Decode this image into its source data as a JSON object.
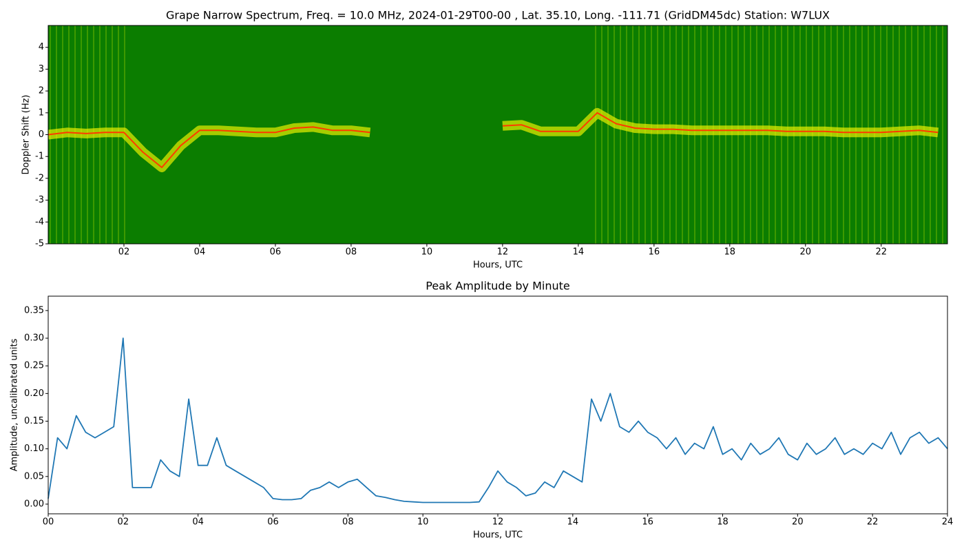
{
  "charts": [
    {
      "type": "spectrogram",
      "title": "Grape Narrow Spectrum, Freq. = 10.0 MHz, 2024-01-29T00-00 , Lat.  35.10, Long. -111.71 (GridDM45dc) Station: W7LUX",
      "x_label": "Hours, UTC",
      "y_label": "Doppler Shift (Hz)",
      "xlim": [
        0,
        23.75
      ],
      "ylim": [
        -5,
        5
      ],
      "xticks": [
        {
          "value": 2,
          "label": "02"
        },
        {
          "value": 4,
          "label": "04"
        },
        {
          "value": 6,
          "label": "06"
        },
        {
          "value": 8,
          "label": "08"
        },
        {
          "value": 10,
          "label": "10"
        },
        {
          "value": 12,
          "label": "12"
        },
        {
          "value": 14,
          "label": "14"
        },
        {
          "value": 16,
          "label": "16"
        },
        {
          "value": 18,
          "label": "18"
        },
        {
          "value": 20,
          "label": "20"
        },
        {
          "value": 22,
          "label": "22"
        }
      ],
      "yticks": [
        -5,
        -4,
        -3,
        -2,
        -1,
        0,
        1,
        2,
        3,
        4
      ],
      "color": "#ff3a00",
      "x": [
        0,
        0.5,
        1,
        1.5,
        2,
        2.5,
        3,
        3.5,
        4,
        4.5,
        5,
        5.5,
        6,
        6.5,
        7,
        7.5,
        8,
        8.5,
        9,
        9.5,
        10,
        10.5,
        11,
        11.5,
        12,
        12.5,
        13,
        13.5,
        14,
        14.5,
        15,
        15.5,
        16,
        16.5,
        17,
        17.5,
        18,
        18.5,
        19,
        19.5,
        20,
        20.5,
        21,
        21.5,
        22,
        22.5,
        23,
        23.5
      ],
      "values": [
        0.0,
        0.1,
        0.05,
        0.1,
        0.1,
        -0.8,
        -1.5,
        -0.5,
        0.2,
        0.2,
        0.15,
        0.1,
        0.1,
        0.3,
        0.35,
        0.2,
        0.2,
        0.1,
        null,
        null,
        null,
        null,
        null,
        null,
        0.4,
        0.45,
        0.15,
        0.15,
        0.15,
        1.0,
        0.5,
        0.3,
        0.25,
        0.25,
        0.2,
        0.2,
        0.2,
        0.2,
        0.2,
        0.15,
        0.15,
        0.15,
        0.1,
        0.1,
        0.1,
        0.15,
        0.2,
        0.1
      ]
    },
    {
      "type": "line",
      "title": "Peak Amplitude by Minute",
      "x_label": "Hours, UTC",
      "y_label": "Amplitude, uncalibrated units",
      "xlim": [
        0,
        24
      ],
      "ylim": [
        -0.0175,
        0.376
      ],
      "xticks": [
        {
          "value": 0,
          "label": "00"
        },
        {
          "value": 2,
          "label": "02"
        },
        {
          "value": 4,
          "label": "04"
        },
        {
          "value": 6,
          "label": "06"
        },
        {
          "value": 8,
          "label": "08"
        },
        {
          "value": 10,
          "label": "10"
        },
        {
          "value": 12,
          "label": "12"
        },
        {
          "value": 14,
          "label": "14"
        },
        {
          "value": 16,
          "label": "16"
        },
        {
          "value": 18,
          "label": "18"
        },
        {
          "value": 20,
          "label": "20"
        },
        {
          "value": 22,
          "label": "22"
        },
        {
          "value": 24,
          "label": "24"
        }
      ],
      "yticks": [
        {
          "value": 0,
          "label": "0.00"
        },
        {
          "value": 0.05,
          "label": "0.05"
        },
        {
          "value": 0.1,
          "label": "0.10"
        },
        {
          "value": 0.15,
          "label": "0.15"
        },
        {
          "value": 0.2,
          "label": "0.20"
        },
        {
          "value": 0.25,
          "label": "0.25"
        },
        {
          "value": 0.3,
          "label": "0.30"
        },
        {
          "value": 0.35,
          "label": "0.35"
        }
      ],
      "color": "#1f77b4",
      "x": [
        0,
        0.25,
        0.5,
        0.75,
        1,
        1.25,
        1.5,
        1.75,
        2,
        2.25,
        2.5,
        2.75,
        3,
        3.25,
        3.5,
        3.75,
        4,
        4.25,
        4.5,
        4.75,
        5,
        5.25,
        5.5,
        5.75,
        6,
        6.25,
        6.5,
        6.75,
        7,
        7.25,
        7.5,
        7.75,
        8,
        8.25,
        8.5,
        8.75,
        9,
        9.25,
        9.5,
        9.75,
        10,
        10.25,
        10.5,
        10.75,
        11,
        11.25,
        11.5,
        11.75,
        12,
        12.25,
        12.5,
        12.75,
        13,
        13.25,
        13.5,
        13.75,
        14,
        14.25,
        14.5,
        14.75,
        15,
        15.25,
        15.5,
        15.75,
        16,
        16.25,
        16.5,
        16.75,
        17,
        17.25,
        17.5,
        17.75,
        18,
        18.25,
        18.5,
        18.75,
        19,
        19.25,
        19.5,
        19.75,
        20,
        20.25,
        20.5,
        20.75,
        21,
        21.25,
        21.5,
        21.75,
        22,
        22.25,
        22.5,
        22.75,
        23,
        23.25,
        23.5,
        23.75,
        24
      ],
      "values": [
        0.01,
        0.12,
        0.1,
        0.16,
        0.13,
        0.12,
        0.13,
        0.14,
        0.3,
        0.03,
        0.03,
        0.03,
        0.08,
        0.06,
        0.05,
        0.19,
        0.07,
        0.07,
        0.12,
        0.07,
        0.06,
        0.05,
        0.04,
        0.03,
        0.01,
        0.008,
        0.008,
        0.01,
        0.025,
        0.03,
        0.04,
        0.03,
        0.04,
        0.045,
        0.03,
        0.015,
        0.012,
        0.008,
        0.005,
        0.004,
        0.003,
        0.003,
        0.003,
        0.003,
        0.003,
        0.003,
        0.004,
        0.03,
        0.06,
        0.04,
        0.03,
        0.015,
        0.02,
        0.04,
        0.03,
        0.06,
        0.05,
        0.04,
        0.19,
        0.15,
        0.2,
        0.14,
        0.13,
        0.15,
        0.13,
        0.12,
        0.1,
        0.12,
        0.09,
        0.11,
        0.1,
        0.14,
        0.09,
        0.1,
        0.08,
        0.11,
        0.09,
        0.1,
        0.12,
        0.09,
        0.08,
        0.11,
        0.09,
        0.1,
        0.12,
        0.09,
        0.1,
        0.09,
        0.11,
        0.1,
        0.13,
        0.09,
        0.12,
        0.13,
        0.11,
        0.12,
        0.1
      ]
    }
  ]
}
